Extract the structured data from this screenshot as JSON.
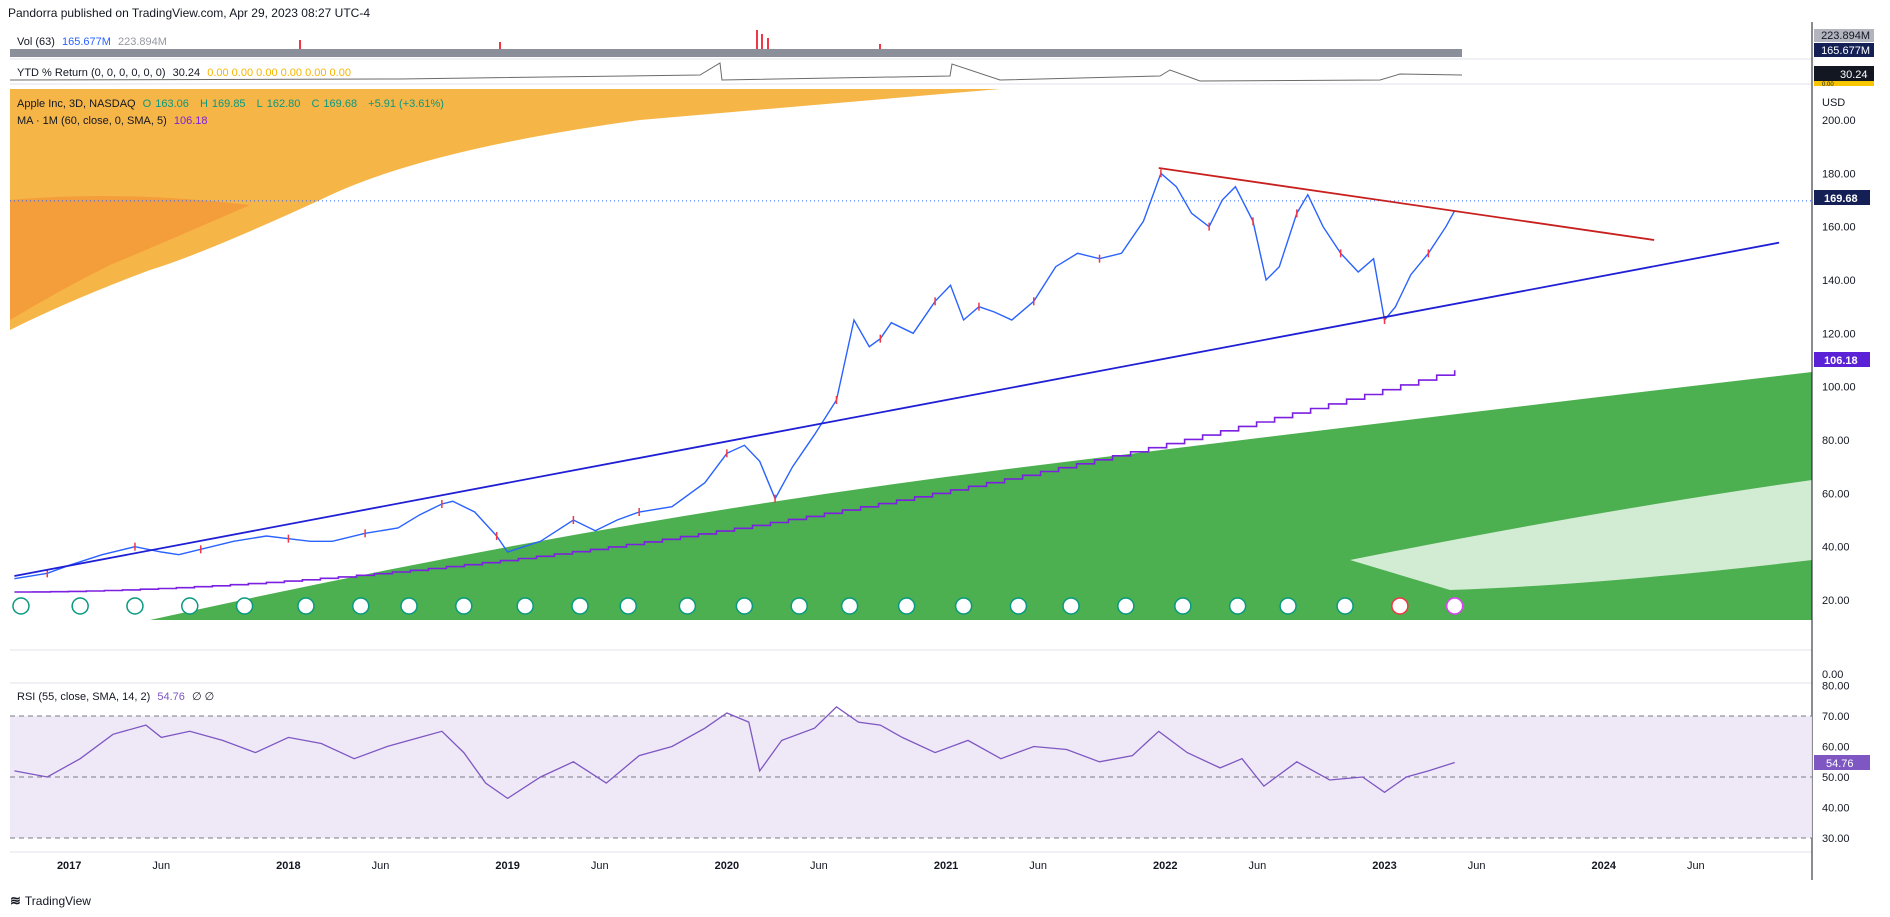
{
  "header": {
    "published": "Pandorra published on TradingView.com, Apr 29, 2023 08:27 UTC-4"
  },
  "legends": {
    "vol": {
      "label": "Vol (63)",
      "v1": "165.677M",
      "v2": "223.894M"
    },
    "ytd": {
      "label": "YTD % Return (0, 0, 0, 0, 0, 0)",
      "value": "30.24",
      "zeros": "0.00  0.00  0.00  0.00  0.00  0.00"
    },
    "symbol": {
      "name": "Apple Inc, 3D, NASDAQ",
      "o_lbl": "O",
      "o": "163.06",
      "h_lbl": "H",
      "h": "169.85",
      "l_lbl": "L",
      "l": "162.80",
      "c_lbl": "C",
      "c": "169.68",
      "chg": "+5.91 (+3.61%)"
    },
    "ma": {
      "label": "MA · 1M (60, close, 0, SMA, 5)",
      "value": "106.18"
    },
    "rsi": {
      "label": "RSI (55, close, SMA, 14, 2)",
      "value": "54.76",
      "extra": "∅ ∅"
    }
  },
  "branding": {
    "text": "TradingView"
  },
  "colors": {
    "up": "#089981",
    "down": "#f23645",
    "candle_up": "#2962ff",
    "ma": "#7b1fe0",
    "rsi": "#7e57c2",
    "support": "#1f1fd6",
    "resistance": "#c8201e",
    "green_zone": "#4caf50",
    "orange_zone": "#f0a030"
  },
  "chart_data": {
    "type": "line",
    "title": "Apple Inc, 3D, NASDAQ",
    "currency": "USD",
    "price_axis": {
      "ticks": [
        20,
        40,
        60,
        80,
        100,
        120,
        140,
        160,
        180,
        200
      ],
      "labels": [
        "20.00",
        "40.00",
        "60.00",
        "80.00",
        "100.00",
        "120.00",
        "140.00",
        "160.00",
        "180.00",
        "200.00"
      ],
      "last_price": 169.68,
      "last_price_label": "169.68",
      "ma_label": "106.18"
    },
    "volume_axis": {
      "labels": [
        "223.894M",
        "165.677M"
      ]
    },
    "ytd_axis": {
      "labels": [
        "30.24",
        "0.00"
      ]
    },
    "rsi_axis": {
      "ticks": [
        0,
        30,
        40,
        50,
        60,
        70,
        80
      ],
      "labels": [
        "0.00",
        "30.00",
        "40.00",
        "50.00",
        "60.00",
        "70.00",
        "80.00"
      ],
      "bands": [
        30,
        50,
        70
      ],
      "value_label": "54.76"
    },
    "time_axis": {
      "labels": [
        "2017",
        "Jun",
        "2018",
        "Jun",
        "2019",
        "Jun",
        "2020",
        "Jun",
        "2021",
        "Jun",
        "2022",
        "Jun",
        "2023",
        "Jun",
        "2024",
        "Jun"
      ],
      "values": [
        2017.0,
        2017.42,
        2018.0,
        2018.42,
        2019.0,
        2019.42,
        2020.0,
        2020.42,
        2021.0,
        2021.42,
        2022.0,
        2022.42,
        2023.0,
        2023.42,
        2024.0,
        2024.42
      ]
    },
    "price_series": {
      "name": "AAPL",
      "x": [
        2016.75,
        2016.9,
        2017.0,
        2017.15,
        2017.3,
        2017.42,
        2017.5,
        2017.6,
        2017.75,
        2017.9,
        2018.0,
        2018.1,
        2018.2,
        2018.35,
        2018.5,
        2018.6,
        2018.7,
        2018.75,
        2018.85,
        2018.95,
        2019.0,
        2019.15,
        2019.3,
        2019.4,
        2019.5,
        2019.6,
        2019.75,
        2019.9,
        2020.0,
        2020.08,
        2020.15,
        2020.22,
        2020.3,
        2020.4,
        2020.5,
        2020.58,
        2020.65,
        2020.7,
        2020.75,
        2020.85,
        2020.95,
        2021.02,
        2021.08,
        2021.15,
        2021.22,
        2021.3,
        2021.4,
        2021.5,
        2021.6,
        2021.7,
        2021.8,
        2021.9,
        2021.98,
        2022.05,
        2022.12,
        2022.2,
        2022.26,
        2022.32,
        2022.4,
        2022.46,
        2022.52,
        2022.6,
        2022.65,
        2022.72,
        2022.8,
        2022.88,
        2022.95,
        2023.0,
        2023.05,
        2023.12,
        2023.2,
        2023.28,
        2023.32
      ],
      "y": [
        28,
        30,
        33,
        37,
        40,
        38,
        37,
        39,
        42,
        44,
        43,
        42,
        42,
        45,
        47,
        52,
        56,
        57,
        53,
        44,
        38,
        42,
        50,
        46,
        50,
        53,
        55,
        64,
        75,
        78,
        72,
        58,
        70,
        82,
        95,
        125,
        115,
        118,
        124,
        120,
        132,
        138,
        125,
        130,
        128,
        125,
        132,
        145,
        150,
        148,
        150,
        162,
        180,
        175,
        165,
        160,
        170,
        175,
        162,
        140,
        145,
        165,
        172,
        160,
        150,
        143,
        148,
        125,
        130,
        142,
        150,
        160,
        166
      ],
      "min": 25,
      "max": 182
    },
    "moving_average": {
      "name": "MA 1M (60, close, 0, SMA, 5)",
      "last": 106.18,
      "start": 23,
      "x_start": 2016.75,
      "x_end": 2023.32
    },
    "trendlines": [
      {
        "name": "ascending support",
        "x1": 2016.75,
        "y1": 29,
        "x2": 2024.8,
        "y2": 154
      },
      {
        "name": "descending resistance",
        "x1": 2021.97,
        "y1": 182,
        "x2": 2024.23,
        "y2": 155
      }
    ],
    "rsi_series": {
      "name": "RSI (55)",
      "x": [
        2016.75,
        2016.9,
        2017.05,
        2017.2,
        2017.35,
        2017.42,
        2017.55,
        2017.7,
        2017.85,
        2018.0,
        2018.15,
        2018.3,
        2018.45,
        2018.6,
        2018.7,
        2018.8,
        2018.9,
        2019.0,
        2019.15,
        2019.3,
        2019.45,
        2019.6,
        2019.75,
        2019.9,
        2020.0,
        2020.1,
        2020.15,
        2020.25,
        2020.4,
        2020.5,
        2020.6,
        2020.7,
        2020.8,
        2020.95,
        2021.1,
        2021.25,
        2021.4,
        2021.55,
        2021.7,
        2021.85,
        2021.97,
        2022.1,
        2022.25,
        2022.35,
        2022.45,
        2022.6,
        2022.75,
        2022.9,
        2023.0,
        2023.1,
        2023.2,
        2023.32
      ],
      "y": [
        52,
        50,
        56,
        64,
        67,
        63,
        65,
        62,
        58,
        63,
        61,
        56,
        60,
        63,
        65,
        58,
        48,
        43,
        50,
        55,
        48,
        57,
        60,
        66,
        71,
        68,
        52,
        62,
        66,
        73,
        68,
        67,
        63,
        58,
        62,
        56,
        60,
        59,
        55,
        57,
        65,
        58,
        53,
        56,
        47,
        55,
        49,
        50,
        45,
        50,
        52,
        54.76
      ]
    }
  }
}
